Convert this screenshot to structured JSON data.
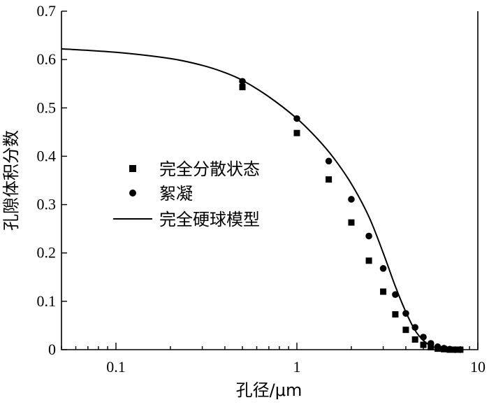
{
  "chart_data": {
    "type": "scatter",
    "xlabel": "孔径/μm",
    "ylabel": "孔隙体积分数",
    "xscale": "log",
    "xlim": [
      0.05,
      10
    ],
    "ylim": [
      0,
      0.7
    ],
    "x_ticks": [
      0.1,
      1,
      10
    ],
    "x_tick_labels": [
      "0.1",
      "1",
      "10"
    ],
    "y_ticks": [
      0,
      0.1,
      0.2,
      0.3,
      0.4,
      0.5,
      0.6,
      0.7
    ],
    "y_tick_labels": [
      "0",
      "0.1",
      "0.2",
      "0.3",
      "0.4",
      "0.5",
      "0.6",
      "0.7"
    ],
    "grid": false,
    "legend_position": "center",
    "series": [
      {
        "name": "完全分散状态",
        "marker": "square",
        "points": [
          {
            "x": 0.5,
            "y": 0.543
          },
          {
            "x": 1.0,
            "y": 0.448
          },
          {
            "x": 1.5,
            "y": 0.352
          },
          {
            "x": 2.0,
            "y": 0.263
          },
          {
            "x": 2.5,
            "y": 0.184
          },
          {
            "x": 3.0,
            "y": 0.12
          },
          {
            "x": 3.5,
            "y": 0.073
          },
          {
            "x": 4.0,
            "y": 0.041
          },
          {
            "x": 4.5,
            "y": 0.021
          },
          {
            "x": 5.0,
            "y": 0.01
          },
          {
            "x": 5.5,
            "y": 0.005
          },
          {
            "x": 6.0,
            "y": 0.002
          },
          {
            "x": 6.5,
            "y": 0.001
          },
          {
            "x": 7.0,
            "y": 0.0
          },
          {
            "x": 7.5,
            "y": 0.0
          },
          {
            "x": 8.0,
            "y": 0.0
          }
        ]
      },
      {
        "name": "絮凝",
        "marker": "circle",
        "points": [
          {
            "x": 0.5,
            "y": 0.555
          },
          {
            "x": 1.0,
            "y": 0.478
          },
          {
            "x": 1.5,
            "y": 0.39
          },
          {
            "x": 2.0,
            "y": 0.311
          },
          {
            "x": 2.5,
            "y": 0.235
          },
          {
            "x": 3.0,
            "y": 0.168
          },
          {
            "x": 3.5,
            "y": 0.114
          },
          {
            "x": 4.0,
            "y": 0.075
          },
          {
            "x": 4.5,
            "y": 0.046
          },
          {
            "x": 5.0,
            "y": 0.026
          },
          {
            "x": 5.5,
            "y": 0.013
          },
          {
            "x": 6.0,
            "y": 0.006
          },
          {
            "x": 6.5,
            "y": 0.003
          },
          {
            "x": 7.0,
            "y": 0.001
          },
          {
            "x": 7.5,
            "y": 0.0
          },
          {
            "x": 8.0,
            "y": 0.0
          }
        ]
      },
      {
        "name": "完全硬球模型",
        "marker": "line",
        "points": [
          {
            "x": 0.05,
            "y": 0.622
          },
          {
            "x": 0.1,
            "y": 0.615
          },
          {
            "x": 0.2,
            "y": 0.602
          },
          {
            "x": 0.3,
            "y": 0.588
          },
          {
            "x": 0.4,
            "y": 0.573
          },
          {
            "x": 0.5,
            "y": 0.557
          },
          {
            "x": 0.7,
            "y": 0.523
          },
          {
            "x": 1.0,
            "y": 0.478
          },
          {
            "x": 1.3,
            "y": 0.436
          },
          {
            "x": 1.6,
            "y": 0.396
          },
          {
            "x": 2.0,
            "y": 0.343
          },
          {
            "x": 2.5,
            "y": 0.275
          },
          {
            "x": 3.0,
            "y": 0.2
          },
          {
            "x": 3.5,
            "y": 0.131
          },
          {
            "x": 4.0,
            "y": 0.078
          },
          {
            "x": 4.5,
            "y": 0.04
          },
          {
            "x": 5.0,
            "y": 0.019
          },
          {
            "x": 5.5,
            "y": 0.008
          },
          {
            "x": 6.0,
            "y": 0.003
          },
          {
            "x": 6.5,
            "y": 0.001
          },
          {
            "x": 7.0,
            "y": 0.0
          },
          {
            "x": 8.0,
            "y": 0.0
          }
        ]
      }
    ]
  }
}
